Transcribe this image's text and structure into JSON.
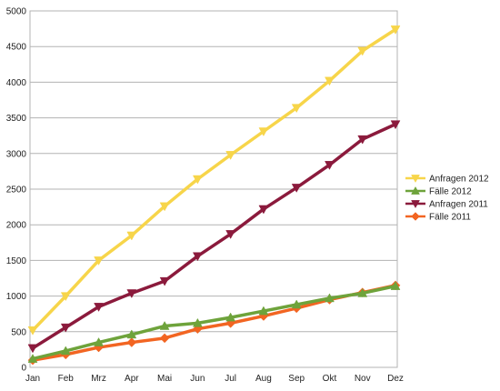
{
  "chart_data": {
    "type": "line",
    "title": "",
    "xlabel": "",
    "ylabel": "",
    "categories": [
      "Jan",
      "Feb",
      "Mrz",
      "Apr",
      "Mai",
      "Jun",
      "Jul",
      "Aug",
      "Sep",
      "Okt",
      "Nov",
      "Dez"
    ],
    "ylim": [
      0,
      5000
    ],
    "yticks": [
      0,
      500,
      1000,
      1500,
      2000,
      2500,
      3000,
      3500,
      4000,
      4500,
      5000
    ],
    "grid": true,
    "legend_position": "right",
    "series": [
      {
        "name": "Anfragen 2012",
        "color": "#f7d54a",
        "marker": "triangle-down",
        "values": [
          520,
          1000,
          1500,
          1850,
          2260,
          2640,
          2980,
          3310,
          3640,
          4020,
          4440,
          4740
        ]
      },
      {
        "name": "Fälle 2012",
        "color": "#6ea33b",
        "marker": "triangle-up",
        "values": [
          120,
          230,
          350,
          460,
          580,
          620,
          700,
          790,
          880,
          970,
          1040,
          1140
        ]
      },
      {
        "name": "Anfragen 2011",
        "color": "#8b1a3c",
        "marker": "triangle-down",
        "values": [
          270,
          560,
          850,
          1040,
          1210,
          1560,
          1870,
          2220,
          2520,
          2840,
          3200,
          3410
        ]
      },
      {
        "name": "Fälle 2011",
        "color": "#f26522",
        "marker": "diamond",
        "values": [
          100,
          180,
          280,
          350,
          410,
          540,
          620,
          720,
          830,
          950,
          1050,
          1150
        ]
      }
    ]
  }
}
